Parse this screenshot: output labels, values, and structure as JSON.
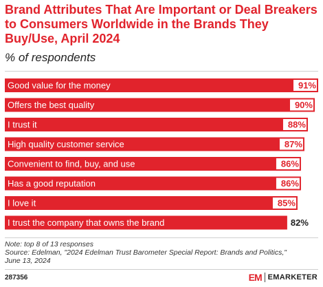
{
  "header": {
    "title": "Brand Attributes That Are Important or Deal Breakers to Consumers Worldwide in the Brands They Buy/Use, April 2024",
    "subtitle": "% of respondents"
  },
  "chart_data": {
    "type": "bar",
    "orientation": "horizontal",
    "title": "Brand Attributes That Are Important or Deal Breakers to Consumers Worldwide in the Brands They Buy/Use, April 2024",
    "subtitle": "% of respondents",
    "categories": [
      "Good value for the money",
      "Offers the best quality",
      "I trust it",
      "High quality customer service",
      "Convenient to find, buy, and use",
      "Has a good reputation",
      "I love it",
      "I trust the company that owns the brand"
    ],
    "values": [
      91,
      90,
      88,
      87,
      86,
      86,
      85,
      82
    ],
    "value_labels": [
      "91%",
      "90%",
      "88%",
      "87%",
      "86%",
      "86%",
      "85%",
      "82%"
    ],
    "unit": "%",
    "xlim": [
      0,
      91
    ],
    "grid": false,
    "bar_color": "#e1232c",
    "value_label_color_inside": "#e1232c",
    "value_label_color_outside": "#222222"
  },
  "notes": {
    "note": "Note: top 8 of 13 responses",
    "source_line1": "Source: Edelman, \"2024 Edelman Trust Barometer Special Report: Brands and Politics,\"",
    "source_line2": "June 13, 2024"
  },
  "footer": {
    "chart_id": "287356",
    "logo_mark": "EM",
    "logo_text": "EMARKETER"
  }
}
